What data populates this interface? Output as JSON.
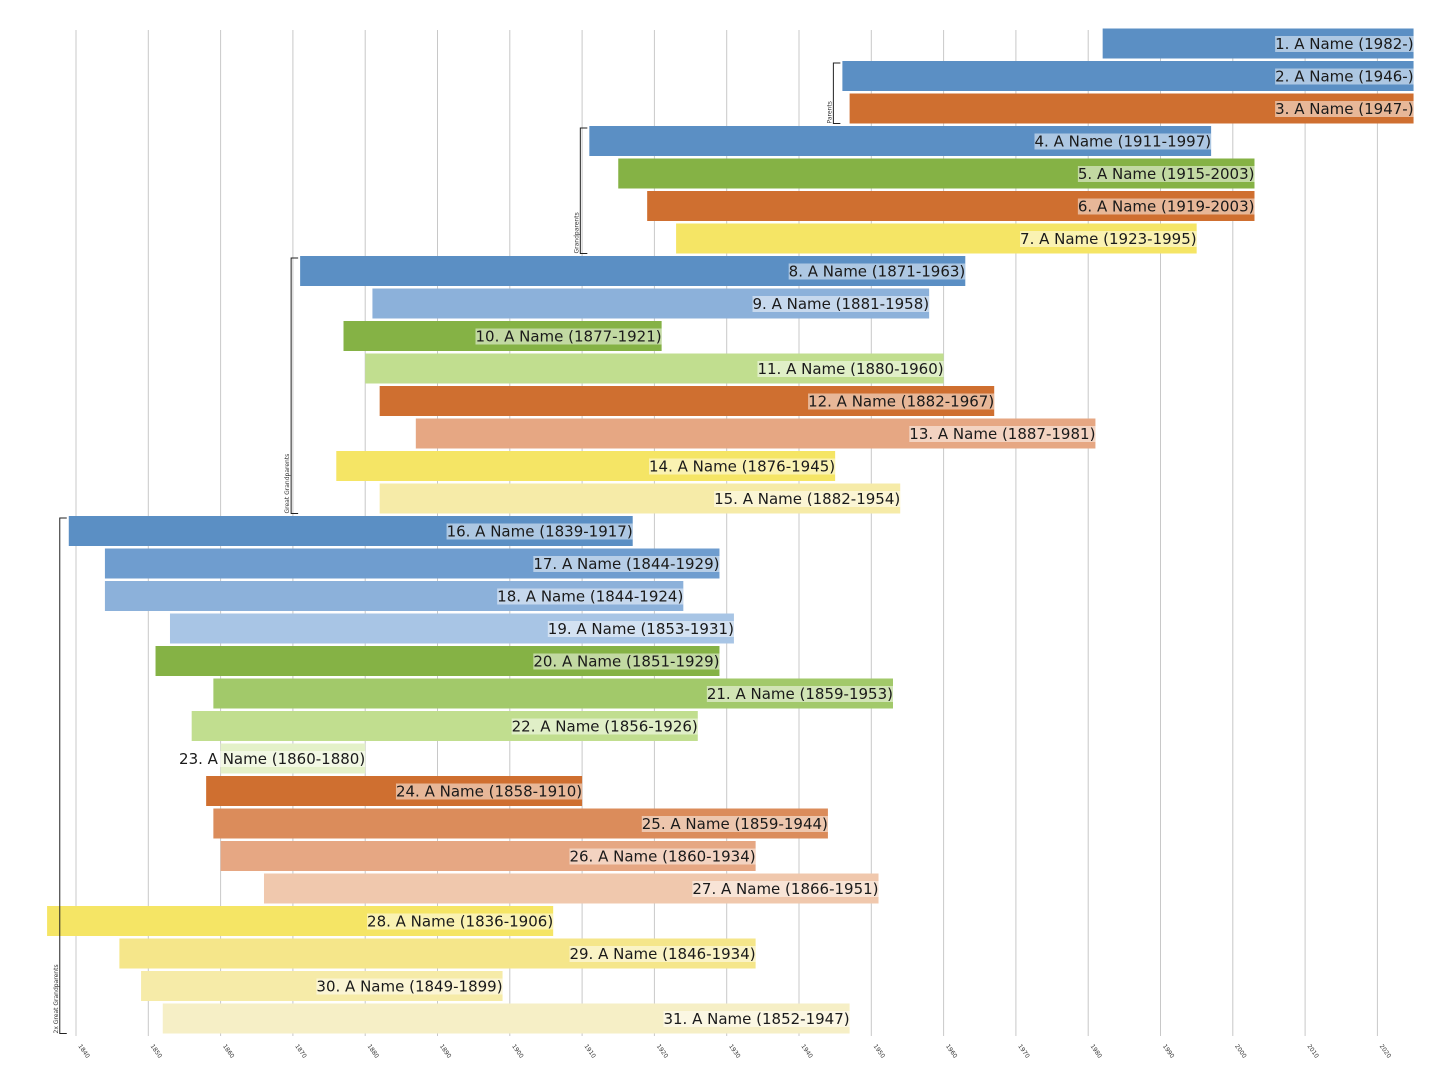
{
  "chart_data": {
    "type": "bar",
    "orientation": "horizontal-timeline",
    "title": "",
    "xlabel": "",
    "ylabel": "",
    "xlim": [
      1832,
      2025
    ],
    "x_ticks": [
      1840,
      1850,
      1860,
      1870,
      1880,
      1890,
      1900,
      1910,
      1920,
      1930,
      1940,
      1950,
      1960,
      1970,
      1980,
      1990,
      2000,
      2010,
      2020
    ],
    "grid": true,
    "end_open_value": 2025,
    "people": [
      {
        "label": "1. A Name (1982-)",
        "start": 1982,
        "end": null,
        "color": "#5b8fc4"
      },
      {
        "label": "2. A Name (1946-)",
        "start": 1946,
        "end": null,
        "color": "#5b8fc4"
      },
      {
        "label": "3. A Name (1947-)",
        "start": 1947,
        "end": null,
        "color": "#cf6f30"
      },
      {
        "label": "4. A Name (1911-1997)",
        "start": 1911,
        "end": 1997,
        "color": "#5b8fc4"
      },
      {
        "label": "5. A Name (1915-2003)",
        "start": 1915,
        "end": 2003,
        "color": "#85b245"
      },
      {
        "label": "6. A Name (1919-2003)",
        "start": 1919,
        "end": 2003,
        "color": "#cf6f30"
      },
      {
        "label": "7. A Name (1923-1995)",
        "start": 1923,
        "end": 1995,
        "color": "#f5e565"
      },
      {
        "label": "8. A Name (1871-1963)",
        "start": 1871,
        "end": 1963,
        "color": "#5b8fc4"
      },
      {
        "label": "9. A Name (1881-1958)",
        "start": 1881,
        "end": 1958,
        "color": "#8cb1da"
      },
      {
        "label": "10. A Name (1877-1921)",
        "start": 1877,
        "end": 1921,
        "color": "#85b245"
      },
      {
        "label": "11. A Name (1880-1960)",
        "start": 1880,
        "end": 1960,
        "color": "#c1de8f"
      },
      {
        "label": "12. A Name (1882-1967)",
        "start": 1882,
        "end": 1967,
        "color": "#cf6f30"
      },
      {
        "label": "13. A Name (1887-1981)",
        "start": 1887,
        "end": 1981,
        "color": "#e6a783"
      },
      {
        "label": "14. A Name (1876-1945)",
        "start": 1876,
        "end": 1945,
        "color": "#f5e565"
      },
      {
        "label": "15. A Name (1882-1954)",
        "start": 1882,
        "end": 1954,
        "color": "#f6eba8"
      },
      {
        "label": "16. A Name (1839-1917)",
        "start": 1839,
        "end": 1917,
        "color": "#5b8fc4"
      },
      {
        "label": "17. A Name (1844-1929)",
        "start": 1844,
        "end": 1929,
        "color": "#6f9dcf"
      },
      {
        "label": "18. A Name (1844-1924)",
        "start": 1844,
        "end": 1924,
        "color": "#8cb1da"
      },
      {
        "label": "19. A Name (1853-1931)",
        "start": 1853,
        "end": 1931,
        "color": "#a8c5e5"
      },
      {
        "label": "20. A Name (1851-1929)",
        "start": 1851,
        "end": 1929,
        "color": "#85b245"
      },
      {
        "label": "21. A Name (1859-1953)",
        "start": 1859,
        "end": 1953,
        "color": "#a2c96a"
      },
      {
        "label": "22. A Name (1856-1926)",
        "start": 1856,
        "end": 1926,
        "color": "#c1de8f"
      },
      {
        "label": "23. A Name (1860-1880)",
        "start": 1860,
        "end": 1880,
        "color": "#e4f1c9"
      },
      {
        "label": "24. A Name (1858-1910)",
        "start": 1858,
        "end": 1910,
        "color": "#cf6f30"
      },
      {
        "label": "25. A Name (1859-1944)",
        "start": 1859,
        "end": 1944,
        "color": "#db8c5b"
      },
      {
        "label": "26. A Name (1860-1934)",
        "start": 1860,
        "end": 1934,
        "color": "#e6a783"
      },
      {
        "label": "27. A Name (1866-1951)",
        "start": 1866,
        "end": 1951,
        "color": "#f0c8ad"
      },
      {
        "label": "28. A Name (1836-1906)",
        "start": 1836,
        "end": 1906,
        "color": "#f5e565"
      },
      {
        "label": "29. A Name (1846-1934)",
        "start": 1846,
        "end": 1934,
        "color": "#f5e68a"
      },
      {
        "label": "30. A Name (1849-1899)",
        "start": 1849,
        "end": 1899,
        "color": "#f6eba8"
      },
      {
        "label": "31. A Name (1852-1947)",
        "start": 1852,
        "end": 1947,
        "color": "#f6efc6"
      }
    ],
    "generations": [
      {
        "label": "Parents",
        "first": 2,
        "last": 3
      },
      {
        "label": "Grandparents",
        "first": 4,
        "last": 7
      },
      {
        "label": "Great Grandparents",
        "first": 8,
        "last": 15
      },
      {
        "label": "2x Great Grandparents",
        "first": 16,
        "last": 31
      }
    ]
  }
}
